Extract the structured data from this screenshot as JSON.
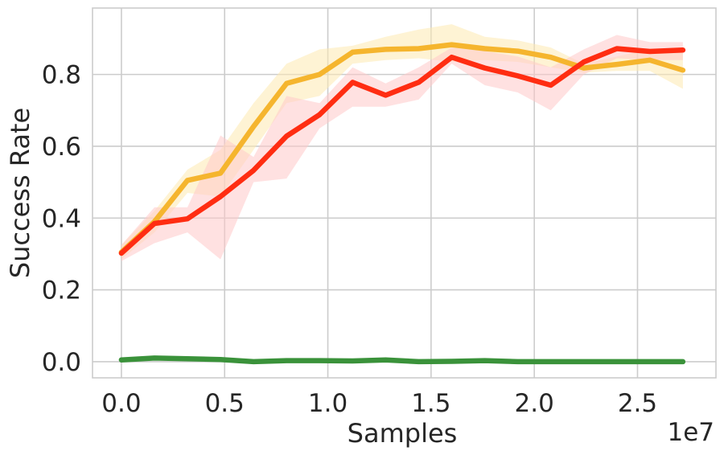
{
  "chart_data": {
    "type": "line",
    "xlabel": "Samples",
    "ylabel": "Success Rate",
    "x_offset_label": "1e7",
    "xlim": [
      -0.14,
      2.88
    ],
    "ylim": [
      -0.045,
      0.985
    ],
    "x_ticks": [
      0.0,
      0.5,
      1.0,
      1.5,
      2.0,
      2.5
    ],
    "x_tick_labels": [
      "0.0",
      "0.5",
      "1.0",
      "1.5",
      "2.0",
      "2.5"
    ],
    "y_ticks": [
      0.0,
      0.2,
      0.4,
      0.6,
      0.8
    ],
    "y_tick_labels": [
      "0.0",
      "0.2",
      "0.4",
      "0.6",
      "0.8"
    ],
    "grid": true,
    "legend": "none",
    "x": [
      0.0,
      0.16,
      0.32,
      0.48,
      0.64,
      0.8,
      0.96,
      1.12,
      1.28,
      1.44,
      1.6,
      1.76,
      1.92,
      2.08,
      2.24,
      2.4,
      2.56,
      2.72
    ],
    "series": [
      {
        "color": "#f5b52e",
        "band_color": "#fde9b0",
        "values": [
          0.305,
          0.39,
          0.505,
          0.525,
          0.655,
          0.775,
          0.8,
          0.862,
          0.87,
          0.872,
          0.883,
          0.872,
          0.865,
          0.848,
          0.818,
          0.828,
          0.84,
          0.812
        ],
        "lower": [
          0.285,
          0.36,
          0.47,
          0.46,
          0.59,
          0.72,
          0.74,
          0.83,
          0.84,
          0.845,
          0.835,
          0.84,
          0.835,
          0.82,
          0.805,
          0.81,
          0.81,
          0.76
        ],
        "upper": [
          0.325,
          0.42,
          0.535,
          0.59,
          0.72,
          0.83,
          0.87,
          0.88,
          0.905,
          0.925,
          0.94,
          0.905,
          0.895,
          0.875,
          0.83,
          0.85,
          0.87,
          0.865
        ]
      },
      {
        "color": "#ff2d12",
        "band_color": "#ffc9c9",
        "values": [
          0.302,
          0.385,
          0.398,
          0.46,
          0.533,
          0.628,
          0.688,
          0.778,
          0.742,
          0.778,
          0.848,
          0.818,
          0.796,
          0.77,
          0.835,
          0.872,
          0.864,
          0.868
        ],
        "lower": [
          0.28,
          0.33,
          0.36,
          0.285,
          0.5,
          0.51,
          0.65,
          0.71,
          0.71,
          0.73,
          0.83,
          0.77,
          0.75,
          0.7,
          0.8,
          0.845,
          0.84,
          0.84
        ],
        "upper": [
          0.325,
          0.43,
          0.43,
          0.63,
          0.57,
          0.74,
          0.72,
          0.82,
          0.775,
          0.82,
          0.875,
          0.865,
          0.85,
          0.82,
          0.87,
          0.91,
          0.89,
          0.89
        ]
      },
      {
        "color": "#3a923a",
        "band_color": "#c9e8c9",
        "values": [
          0.005,
          0.01,
          0.008,
          0.006,
          0.0,
          0.003,
          0.003,
          0.002,
          0.005,
          0.0,
          0.001,
          0.003,
          0.0,
          0.0,
          0.0,
          0.0,
          0.0,
          0.0
        ],
        "lower": [
          0.0,
          0.005,
          0.004,
          0.002,
          0.0,
          0.0,
          0.0,
          0.0,
          0.001,
          0.0,
          0.0,
          0.0,
          0.0,
          0.0,
          0.0,
          0.0,
          0.0,
          0.0
        ],
        "upper": [
          0.01,
          0.015,
          0.012,
          0.01,
          0.003,
          0.006,
          0.006,
          0.005,
          0.009,
          0.003,
          0.004,
          0.006,
          0.002,
          0.002,
          0.002,
          0.002,
          0.002,
          0.002
        ]
      }
    ]
  }
}
